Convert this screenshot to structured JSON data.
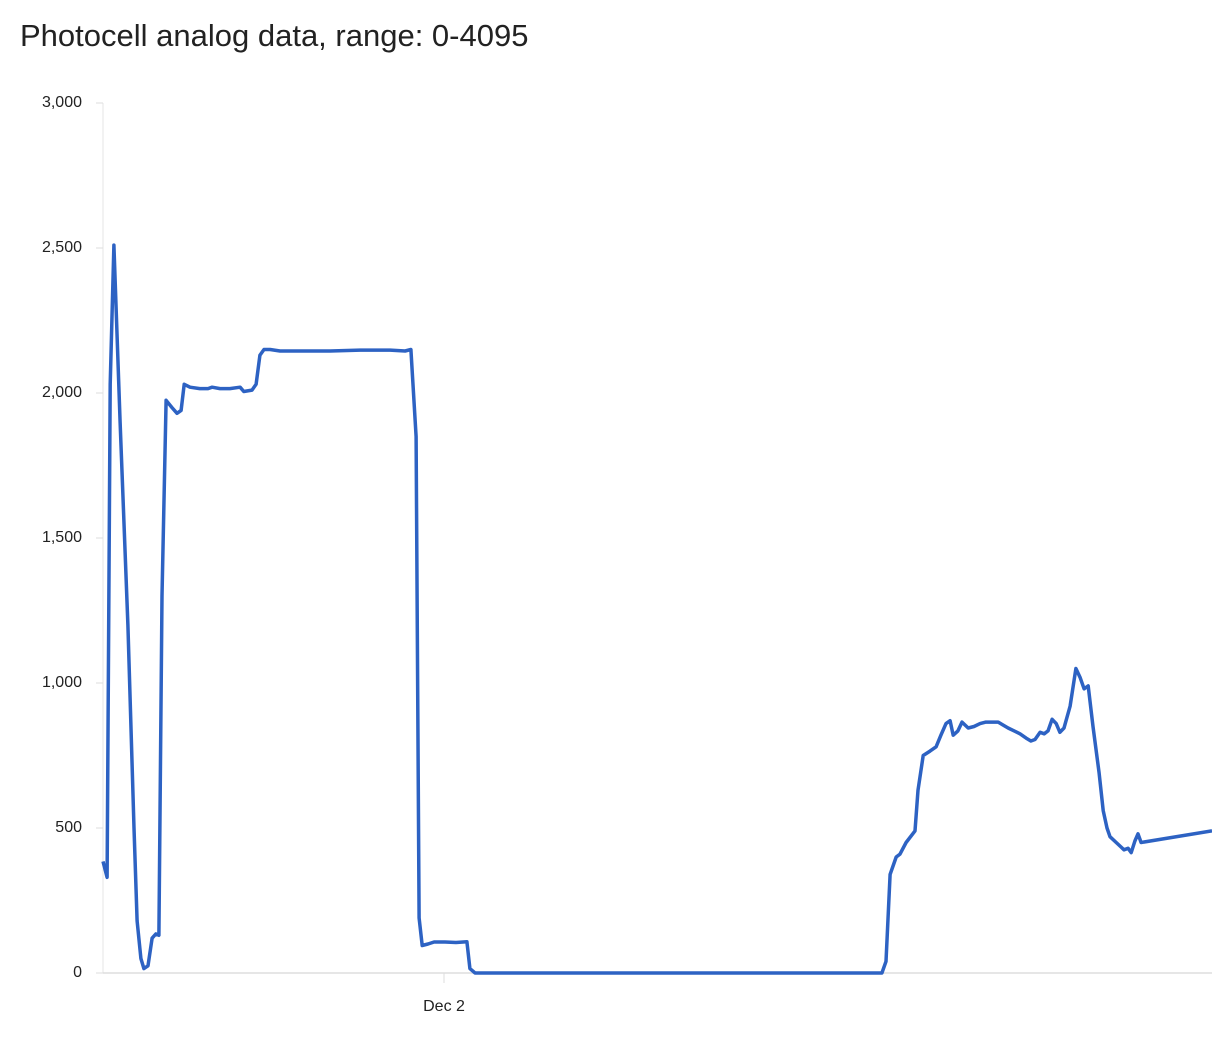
{
  "chart_data": {
    "type": "line",
    "title": "Photocell analog data, range: 0-4095",
    "x": [
      14.0,
      14.12,
      14.21,
      14.32,
      14.5,
      14.73,
      14.91,
      15.0,
      15.11,
      15.2,
      15.32,
      15.44,
      15.55,
      15.64,
      15.73,
      15.85,
      16.02,
      16.17,
      16.29,
      16.38,
      16.55,
      16.84,
      17.08,
      17.2,
      17.43,
      17.72,
      18.02,
      18.13,
      18.37,
      18.49,
      18.6,
      18.72,
      18.9,
      19.19,
      19.78,
      20.66,
      21.54,
      22.42,
      22.86,
      23.03,
      23.18,
      23.27,
      23.36,
      23.53,
      23.71,
      24.03,
      24.35,
      24.67,
      24.76,
      24.91,
      28.57,
      36.84,
      36.96,
      37.08,
      37.26,
      37.37,
      37.55,
      37.81,
      37.9,
      38.05,
      38.25,
      38.43,
      38.57,
      38.72,
      38.84,
      38.93,
      39.07,
      39.19,
      39.37,
      39.54,
      39.72,
      39.89,
      40.25,
      40.39,
      40.54,
      40.72,
      40.89,
      41.07,
      41.21,
      41.33,
      41.48,
      41.6,
      41.71,
      41.83,
      41.95,
      42.06,
      42.18,
      42.36,
      42.53,
      42.65,
      42.77,
      42.89,
      43.03,
      43.21,
      43.33,
      43.44,
      43.53,
      43.71,
      43.85,
      43.94,
      44.06,
      44.15,
      44.26,
      44.35,
      44.44,
      46.52
    ],
    "series": [
      {
        "name": "Photocell",
        "color": "#2d62c3",
        "values": [
          385,
          330,
          2030,
          2510,
          1900,
          1200,
          500,
          180,
          50,
          15,
          25,
          120,
          135,
          130,
          1300,
          1975,
          1950,
          1930,
          1940,
          2030,
          2020,
          2015,
          2015,
          2020,
          2015,
          2015,
          2020,
          2005,
          2010,
          2030,
          2130,
          2150,
          2150,
          2145,
          2145,
          2145,
          2148,
          2148,
          2145,
          2150,
          1850,
          190,
          95,
          100,
          107,
          107,
          105,
          108,
          15,
          0,
          0,
          0,
          40,
          340,
          400,
          410,
          450,
          490,
          630,
          750,
          765,
          780,
          820,
          860,
          870,
          820,
          835,
          865,
          845,
          850,
          860,
          865,
          865,
          855,
          845,
          835,
          825,
          810,
          800,
          805,
          830,
          825,
          835,
          875,
          860,
          830,
          845,
          920,
          1050,
          1020,
          980,
          990,
          850,
          690,
          560,
          500,
          470,
          450,
          435,
          425,
          430,
          415,
          455,
          480,
          450,
          490
        ]
      }
    ],
    "xlim": [
      14,
      46.52
    ],
    "xticks": [
      {
        "value": 24,
        "label": "Dec 2"
      }
    ],
    "ylim": [
      0,
      3000
    ],
    "yticks": [
      0,
      500,
      {
        "value": 1000,
        "label": "1,000"
      },
      {
        "value": 1500,
        "label": "1,500"
      },
      {
        "value": 2000,
        "label": "2,000"
      },
      {
        "value": 2500,
        "label": "2,500"
      },
      {
        "value": 3000,
        "label": "3,000"
      }
    ]
  }
}
